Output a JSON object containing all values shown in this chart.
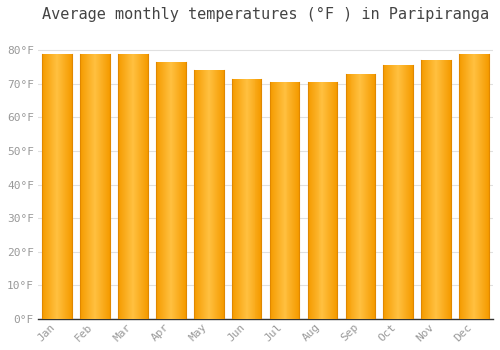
{
  "title": "Average monthly temperatures (°F ) in Paripiranga",
  "months": [
    "Jan",
    "Feb",
    "Mar",
    "Apr",
    "May",
    "Jun",
    "Jul",
    "Aug",
    "Sep",
    "Oct",
    "Nov",
    "Dec"
  ],
  "values": [
    79.0,
    79.0,
    79.0,
    76.5,
    74.0,
    71.5,
    70.5,
    70.5,
    73.0,
    75.5,
    77.0,
    79.0
  ],
  "bar_color_center": "#FFB84D",
  "bar_color_edge": "#F59B00",
  "background_color": "#ffffff",
  "plot_bg_color": "#ffffff",
  "grid_color": "#e0e0e0",
  "ytick_labels": [
    "0°F",
    "10°F",
    "20°F",
    "30°F",
    "40°F",
    "50°F",
    "60°F",
    "70°F",
    "80°F"
  ],
  "ytick_values": [
    0,
    10,
    20,
    30,
    40,
    50,
    60,
    70,
    80
  ],
  "ylim": [
    0,
    86
  ],
  "title_fontsize": 11,
  "tick_fontsize": 8,
  "label_color": "#999999",
  "title_color": "#444444",
  "axis_color": "#333333"
}
